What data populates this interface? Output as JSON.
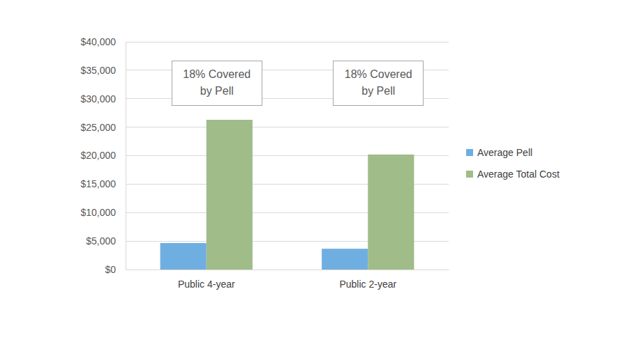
{
  "chart_data": {
    "type": "bar",
    "categories": [
      "Public 4-year",
      "Public 2-year"
    ],
    "series": [
      {
        "name": "Average Pell",
        "color": "#6FAEE0",
        "values": [
          4650,
          3650
        ]
      },
      {
        "name": "Average Total Cost",
        "color": "#A0BC88",
        "values": [
          26300,
          20200
        ]
      }
    ],
    "ylim": [
      0,
      40000
    ],
    "yticks": [
      {
        "value": 0,
        "label": "$0"
      },
      {
        "value": 5000,
        "label": "$5,000"
      },
      {
        "value": 10000,
        "label": "$10,000"
      },
      {
        "value": 15000,
        "label": "$15,000"
      },
      {
        "value": 20000,
        "label": "$20,000"
      },
      {
        "value": 25000,
        "label": "$25,000"
      },
      {
        "value": 30000,
        "label": "$30,000"
      },
      {
        "value": 35000,
        "label": "$35,000"
      },
      {
        "value": 40000,
        "label": "$40,000"
      }
    ],
    "grid": true,
    "legend": "right",
    "annotations": [
      [
        "18% Covered",
        "by Pell"
      ],
      [
        "18% Covered",
        "by Pell"
      ]
    ]
  }
}
